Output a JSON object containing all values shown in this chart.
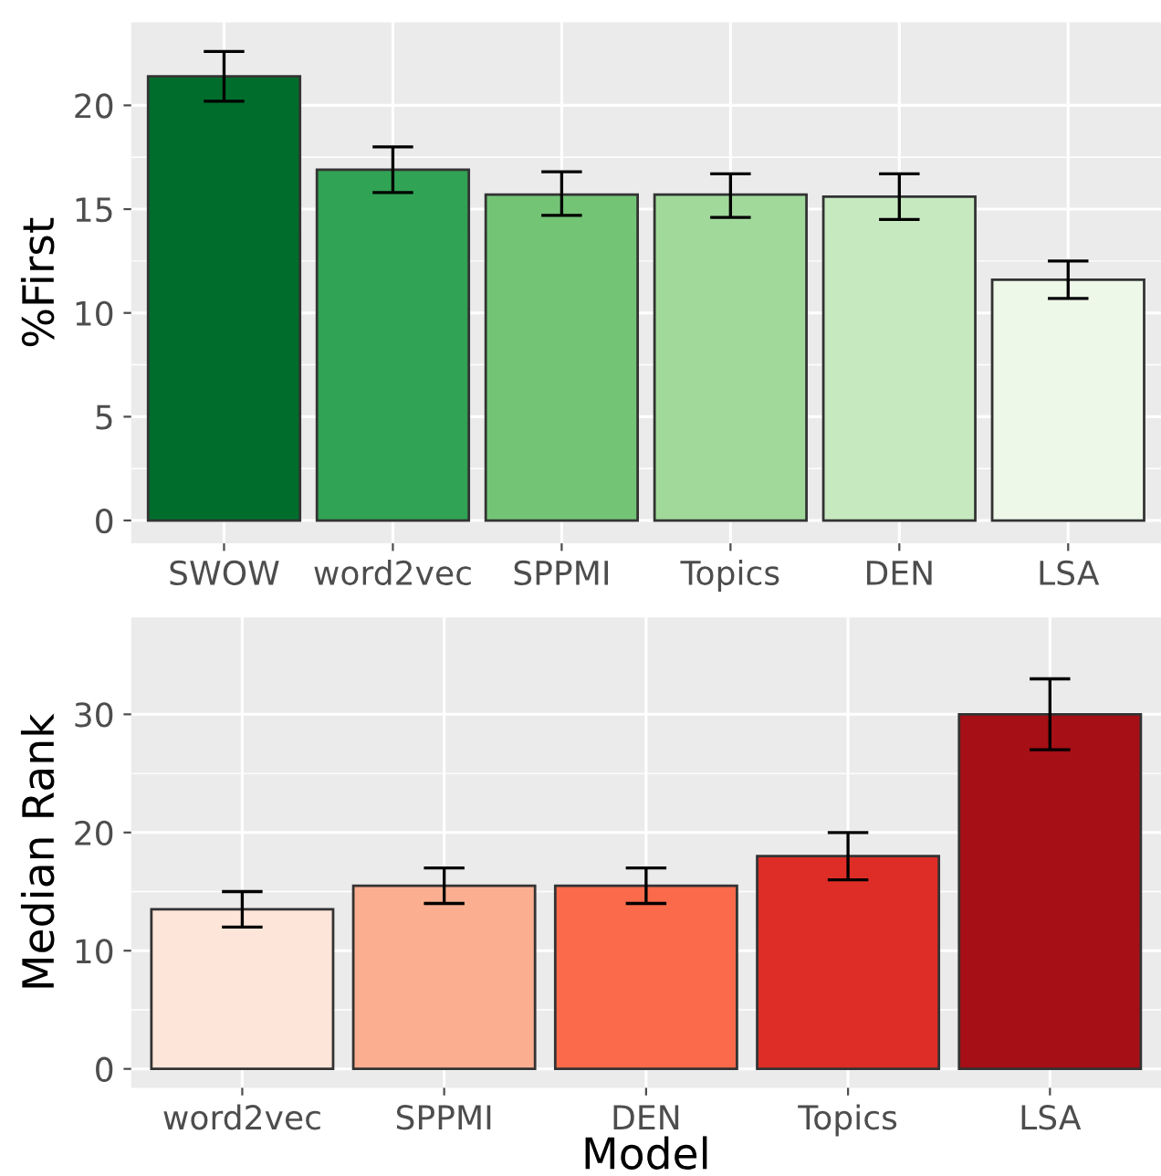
{
  "chart_data": [
    {
      "type": "bar",
      "ylabel": "%First",
      "categories": [
        "SWOW",
        "word2vec",
        "SPPMI",
        "Topics",
        "DEN",
        "LSA"
      ],
      "values": [
        21.4,
        16.9,
        15.7,
        15.7,
        15.6,
        11.6
      ],
      "colors": [
        "#006d2c",
        "#31a354",
        "#74c476",
        "#a1d99b",
        "#c7e9c0",
        "#edf8e9"
      ],
      "errors": [
        [
          20.2,
          22.6
        ],
        [
          15.8,
          18.0
        ],
        [
          14.7,
          16.8
        ],
        [
          14.6,
          16.7
        ],
        [
          14.5,
          16.7
        ],
        [
          10.7,
          12.5
        ]
      ],
      "ylim": [
        -1.1,
        24
      ],
      "yticks": [
        0,
        5,
        10,
        15,
        20
      ],
      "grid": true,
      "legend": false
    },
    {
      "type": "bar",
      "ylabel": "Median Rank",
      "xlabel": "Model",
      "categories": [
        "word2vec",
        "SPPMI",
        "DEN",
        "Topics",
        "LSA"
      ],
      "values": [
        13.5,
        15.5,
        15.5,
        18,
        30
      ],
      "colors": [
        "#fee5d9",
        "#fcae91",
        "#fb6a4a",
        "#de2d26",
        "#a50f15"
      ],
      "errors": [
        [
          12,
          15
        ],
        [
          14,
          17
        ],
        [
          14,
          17
        ],
        [
          16,
          20
        ],
        [
          27,
          33
        ]
      ],
      "ylim": [
        -1.6,
        38.2
      ],
      "yticks": [
        0,
        10,
        20,
        30
      ],
      "grid": true,
      "legend": false
    }
  ]
}
